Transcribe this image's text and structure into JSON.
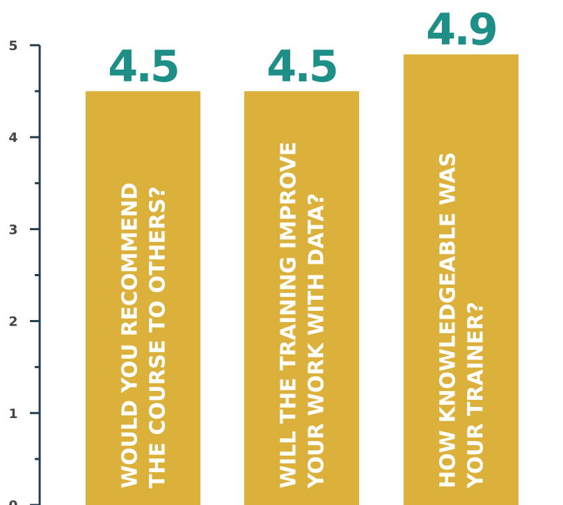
{
  "chart_data": {
    "type": "bar",
    "categories": [
      [
        "WOULD YOU RECOMMEND",
        "THE COURSE TO OTHERS?"
      ],
      [
        "WILL THE TRAINING IMPROVE",
        "YOUR WORK WITH DATA?"
      ],
      [
        "HOW KNOWLEDGEABLE WAS",
        "YOUR TRAINER?"
      ]
    ],
    "values": [
      4.5,
      4.5,
      4.9
    ],
    "value_labels": [
      "4.5",
      "4.5",
      "4.9"
    ],
    "ylim": [
      0,
      5
    ],
    "yticks": [
      "0",
      "1",
      "2",
      "3",
      "4",
      "5"
    ],
    "title": "",
    "xlabel": "",
    "ylabel": "",
    "grid": false,
    "legend": "none",
    "colors": {
      "bar": "#dbb13b",
      "value_label": "#1e8f86",
      "axis": "#1f3b4d",
      "bar_text": "#ffffff",
      "tick_label": "#444444"
    }
  }
}
